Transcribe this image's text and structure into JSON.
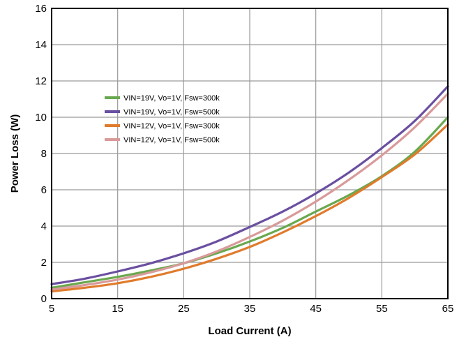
{
  "chart_data": {
    "type": "line",
    "title": "",
    "xlabel": "Load Current (A)",
    "ylabel": "Power Loss (W)",
    "xlim": [
      5,
      65
    ],
    "ylim": [
      0,
      16
    ],
    "xticks": [
      "5",
      "15",
      "25",
      "35",
      "45",
      "55",
      "65"
    ],
    "yticks": [
      "0",
      "2",
      "4",
      "6",
      "8",
      "10",
      "12",
      "14",
      "16"
    ],
    "grid": true,
    "legend_position": "upper-left",
    "x": [
      5,
      10,
      15,
      20,
      25,
      30,
      35,
      40,
      45,
      50,
      55,
      60,
      65
    ],
    "series": [
      {
        "name": "VIN=19V, Vo=1V, Fsw=300k",
        "color": "#6aa84f",
        "values": [
          0.6,
          0.9,
          1.2,
          1.55,
          1.95,
          2.5,
          3.15,
          3.9,
          4.8,
          5.7,
          6.75,
          8.1,
          10.0
        ]
      },
      {
        "name": "VIN=19V, Vo=1V, Fsw=500k",
        "color": "#6a4fa0",
        "values": [
          0.8,
          1.1,
          1.5,
          1.95,
          2.5,
          3.15,
          3.95,
          4.8,
          5.8,
          6.95,
          8.3,
          9.8,
          11.7
        ]
      },
      {
        "name": "VIN=12V, Vo=1V, Fsw=300k",
        "color": "#e07b2c",
        "values": [
          0.4,
          0.6,
          0.85,
          1.2,
          1.65,
          2.2,
          2.85,
          3.65,
          4.55,
          5.55,
          6.7,
          7.95,
          9.6
        ]
      },
      {
        "name": "VIN=12V, Vo=1V, Fsw=500k",
        "color": "#d99a9a",
        "values": [
          0.5,
          0.75,
          1.05,
          1.45,
          1.95,
          2.6,
          3.4,
          4.3,
          5.35,
          6.55,
          7.9,
          9.45,
          11.3
        ]
      }
    ]
  }
}
